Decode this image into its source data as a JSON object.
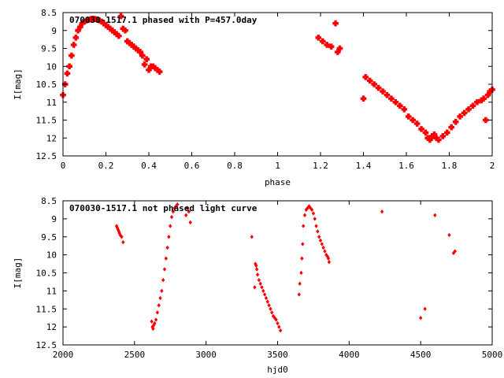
{
  "chart_data": [
    {
      "type": "scatter",
      "title": "070030-1517.1 phased with P=457.0day",
      "xlabel": "phase",
      "ylabel": "I[mag]",
      "xlim": [
        0,
        2
      ],
      "ylim": [
        8.5,
        12.5
      ],
      "y_inverted": true,
      "grid": false,
      "marker_color": "#ff0000",
      "marker": "filled-cross",
      "x_ticks": [
        0,
        0.2,
        0.4,
        0.6,
        0.8,
        1,
        1.2,
        1.4,
        1.6,
        1.8,
        2
      ],
      "x_tick_labels": [
        "0",
        "0.2",
        "0.4",
        "0.6",
        "0.8",
        "1",
        "1.2",
        "1.4",
        "1.6",
        "1.8",
        "2"
      ],
      "y_ticks": [
        8.5,
        9,
        9.5,
        10,
        10.5,
        11,
        11.5,
        12,
        12.5
      ],
      "y_tick_labels": [
        "8.5",
        "9",
        "9.5",
        "10",
        "10.5",
        "11",
        "11.5",
        "12",
        "12.5"
      ],
      "x": [
        0.0,
        0.01,
        0.02,
        0.03,
        0.04,
        0.05,
        0.06,
        0.07,
        0.08,
        0.09,
        0.1,
        0.11,
        0.12,
        0.13,
        0.14,
        0.15,
        0.16,
        0.17,
        0.18,
        0.19,
        0.2,
        0.21,
        0.22,
        0.23,
        0.24,
        0.25,
        0.26,
        0.27,
        0.28,
        0.29,
        0.3,
        0.31,
        0.32,
        0.33,
        0.34,
        0.35,
        0.36,
        0.37,
        0.38,
        0.39,
        0.4,
        0.41,
        0.42,
        0.43,
        0.44,
        0.45,
        1.19,
        1.21,
        1.23,
        1.25,
        1.27,
        1.28,
        1.29,
        1.4,
        1.41,
        1.43,
        1.45,
        1.47,
        1.49,
        1.51,
        1.53,
        1.55,
        1.57,
        1.59,
        1.61,
        1.63,
        1.65,
        1.67,
        1.69,
        1.7,
        1.71,
        1.72,
        1.73,
        1.74,
        1.75,
        1.77,
        1.79,
        1.81,
        1.83,
        1.85,
        1.87,
        1.89,
        1.91,
        1.93,
        1.95,
        1.96,
        1.97,
        1.98,
        1.99,
        2.0
      ],
      "y": [
        10.8,
        10.5,
        10.2,
        10.0,
        9.7,
        9.4,
        9.2,
        9.0,
        8.9,
        8.8,
        8.75,
        8.72,
        8.7,
        8.68,
        8.67,
        8.68,
        8.7,
        8.72,
        8.75,
        8.8,
        8.85,
        8.9,
        8.95,
        9.0,
        9.05,
        9.1,
        9.15,
        8.6,
        8.95,
        9.0,
        9.3,
        9.35,
        9.4,
        9.45,
        9.5,
        9.55,
        9.6,
        9.7,
        9.95,
        9.8,
        10.1,
        10.0,
        10.0,
        10.05,
        10.1,
        10.15,
        9.2,
        9.3,
        9.4,
        9.45,
        8.8,
        9.6,
        9.5,
        10.9,
        10.3,
        10.4,
        10.5,
        10.6,
        10.7,
        10.8,
        10.9,
        11.0,
        11.1,
        11.2,
        11.4,
        11.5,
        11.6,
        11.75,
        11.85,
        12.0,
        12.05,
        11.95,
        11.9,
        12.0,
        12.05,
        11.95,
        11.85,
        11.7,
        11.55,
        11.4,
        11.3,
        11.2,
        11.1,
        11.0,
        10.95,
        10.9,
        11.5,
        10.8,
        10.7,
        10.65
      ]
    },
    {
      "type": "scatter",
      "title": "070030-1517.1 not phased light curve",
      "xlabel": "hjd0",
      "ylabel": "I[mag]",
      "xlim": [
        2000,
        5000
      ],
      "ylim": [
        8.5,
        12.5
      ],
      "y_inverted": true,
      "grid": false,
      "marker_color": "#ff0000",
      "marker": "diamond",
      "x_ticks": [
        2000,
        2500,
        3000,
        3500,
        4000,
        4500,
        5000
      ],
      "x_tick_labels": [
        "2000",
        "2500",
        "3000",
        "3500",
        "4000",
        "4500",
        "5000"
      ],
      "y_ticks": [
        8.5,
        9,
        9.5,
        10,
        10.5,
        11,
        11.5,
        12,
        12.5
      ],
      "y_tick_labels": [
        "8.5",
        "9",
        "9.5",
        "10",
        "10.5",
        "11",
        "11.5",
        "12",
        "12.5"
      ],
      "x": [
        2375,
        2380,
        2385,
        2390,
        2395,
        2400,
        2410,
        2420,
        2620,
        2625,
        2630,
        2635,
        2640,
        2650,
        2660,
        2670,
        2680,
        2690,
        2700,
        2710,
        2720,
        2730,
        2740,
        2750,
        2760,
        2770,
        2780,
        2790,
        2800,
        2860,
        2870,
        2880,
        2890,
        3320,
        3340,
        3345,
        3350,
        3355,
        3360,
        3370,
        3380,
        3390,
        3400,
        3410,
        3420,
        3430,
        3440,
        3450,
        3460,
        3470,
        3480,
        3490,
        3500,
        3510,
        3520,
        3650,
        3655,
        3665,
        3670,
        3675,
        3680,
        3690,
        3700,
        3710,
        3720,
        3730,
        3740,
        3750,
        3760,
        3770,
        3780,
        3790,
        3800,
        3810,
        3820,
        3830,
        3840,
        3850,
        3855,
        3860,
        4230,
        4500,
        4530,
        4600,
        4700,
        4730,
        4740
      ],
      "y": [
        9.2,
        9.25,
        9.3,
        9.35,
        9.4,
        9.45,
        9.5,
        9.65,
        11.85,
        12.0,
        12.05,
        11.95,
        11.9,
        11.8,
        11.6,
        11.4,
        11.2,
        11.0,
        10.7,
        10.4,
        10.1,
        9.8,
        9.5,
        9.2,
        8.95,
        8.8,
        8.7,
        8.65,
        8.6,
        8.9,
        8.7,
        8.8,
        9.1,
        9.5,
        10.9,
        10.25,
        10.3,
        10.4,
        10.55,
        10.7,
        10.8,
        10.9,
        11.0,
        11.1,
        11.2,
        11.3,
        11.4,
        11.5,
        11.6,
        11.7,
        11.75,
        11.8,
        11.9,
        12.0,
        12.1,
        11.1,
        10.8,
        10.5,
        10.1,
        9.7,
        9.2,
        8.9,
        8.75,
        8.7,
        8.65,
        8.7,
        8.75,
        8.85,
        9.0,
        9.2,
        9.35,
        9.5,
        9.6,
        9.7,
        9.8,
        9.9,
        10.0,
        10.05,
        10.1,
        10.2,
        8.8,
        11.75,
        11.5,
        8.9,
        9.45,
        9.95,
        9.9
      ]
    }
  ]
}
